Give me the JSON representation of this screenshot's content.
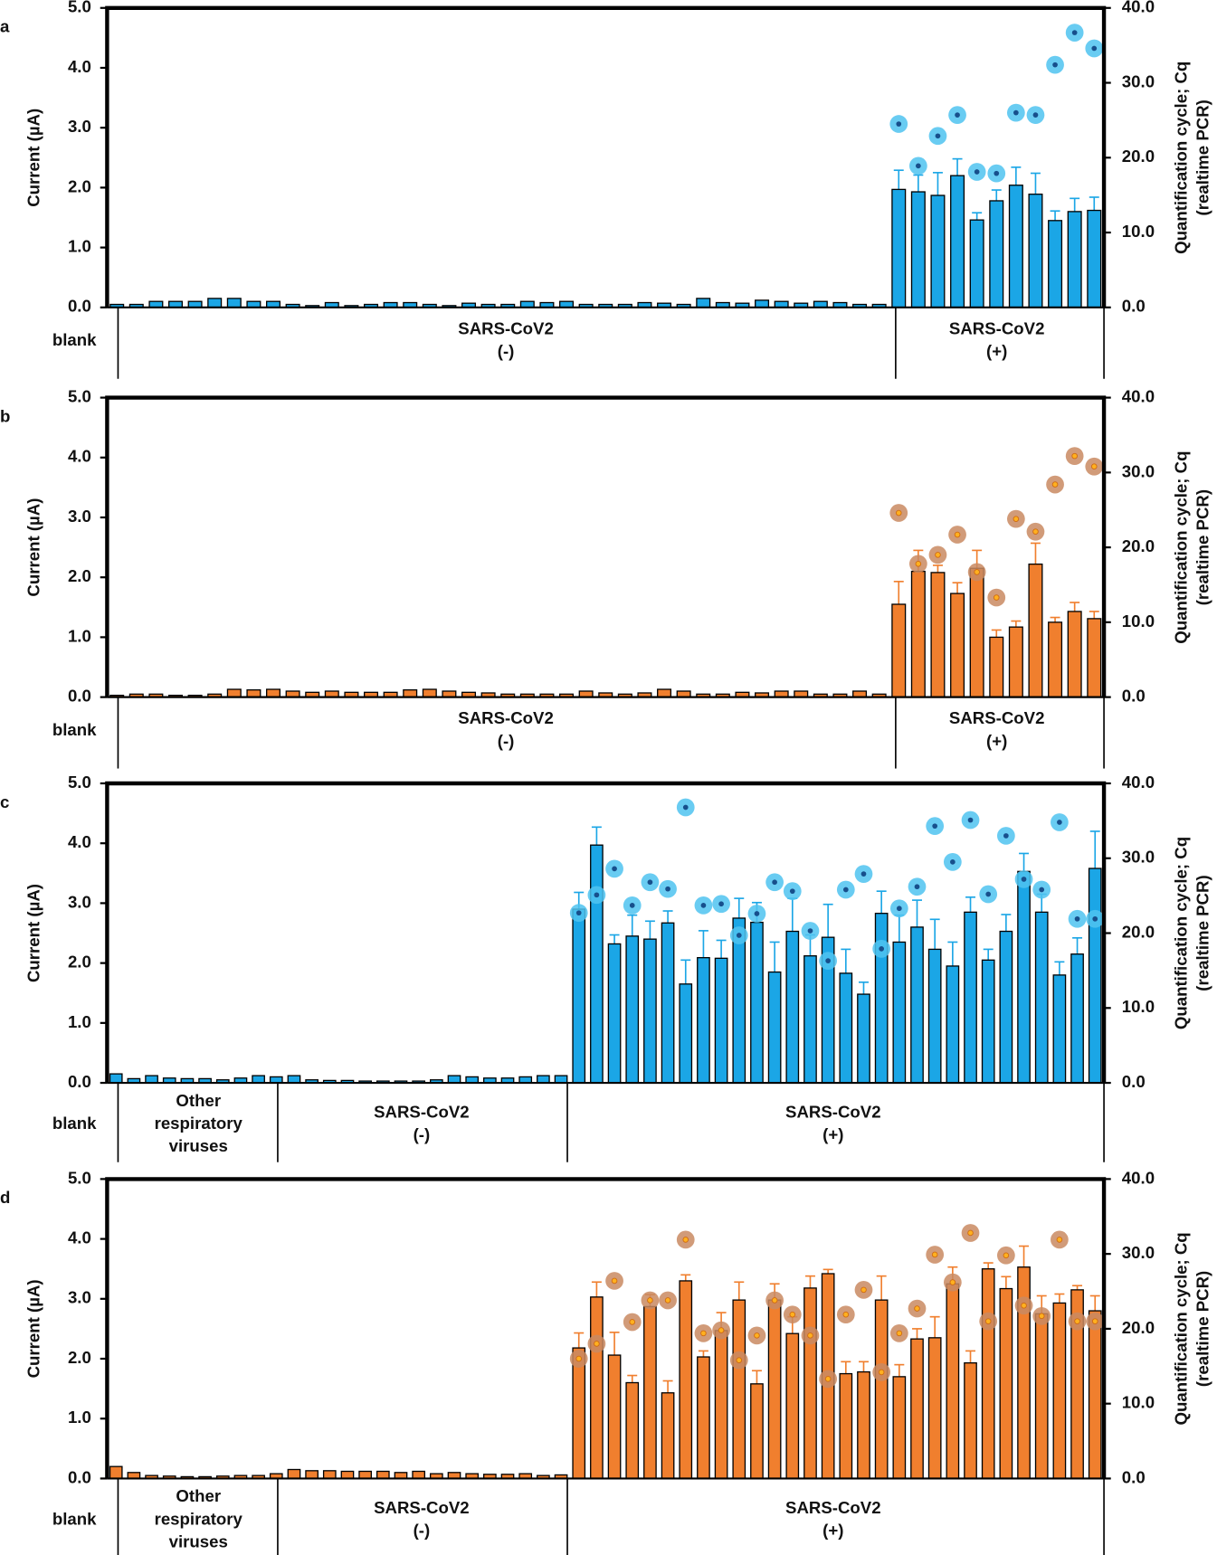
{
  "chart_data": [
    {
      "type": "bar",
      "panel_label": "a",
      "ylabel": "Current (µA)",
      "y2label": [
        "Quantification cycle; Cq",
        "(realtime PCR)"
      ],
      "ylim": [
        0,
        5
      ],
      "yticks": [
        {
          "value": 0,
          "label": "0.0"
        },
        {
          "value": 1,
          "label": "1.0"
        },
        {
          "value": 2,
          "label": "2.0"
        },
        {
          "value": 3,
          "label": "3.0"
        },
        {
          "value": 4,
          "label": "4.0"
        },
        {
          "value": 5,
          "label": "5.0"
        }
      ],
      "y2lim": [
        0,
        40
      ],
      "y2ticks": [
        {
          "value": 0,
          "label": "0.0"
        },
        {
          "value": 10,
          "label": "10.0"
        },
        {
          "value": 20,
          "label": "20.0"
        },
        {
          "value": 30,
          "label": "30.0"
        },
        {
          "value": 40,
          "label": "40.0"
        }
      ],
      "groups": [
        [
          "blank"
        ],
        [
          "SARS-CoV2",
          "(-)"
        ],
        [
          "SARS-CoV2",
          "(+)"
        ]
      ],
      "series": [
        {
          "color": "#1ba6e6",
          "values": [
            0.05,
            0.05,
            0.1,
            0.1,
            0.1,
            0.15,
            0.15,
            0.1,
            0.1,
            0.05,
            0.03,
            0.08,
            0.03,
            0.05,
            0.08,
            0.08,
            0.05,
            0.03,
            0.07,
            0.05,
            0.05,
            0.1,
            0.08,
            0.1,
            0.05,
            0.05,
            0.05,
            0.08,
            0.07,
            0.05,
            0.15,
            0.08,
            0.07,
            0.12,
            0.1,
            0.07,
            0.1,
            0.08,
            0.05,
            0.05,
            1.97,
            1.93,
            1.87,
            2.2,
            1.46,
            1.78,
            2.04,
            1.89,
            1.45,
            1.6,
            1.62
          ],
          "errors": [
            null,
            null,
            null,
            null,
            null,
            null,
            null,
            null,
            null,
            null,
            null,
            null,
            null,
            null,
            null,
            null,
            null,
            null,
            null,
            null,
            null,
            null,
            null,
            null,
            null,
            null,
            null,
            null,
            null,
            null,
            null,
            null,
            null,
            null,
            null,
            null,
            null,
            null,
            null,
            null,
            0.32,
            0.28,
            0.38,
            0.28,
            0.12,
            0.18,
            0.3,
            0.35,
            0.16,
            0.22,
            0.22
          ]
        },
        {
          "type": "scatter",
          "axis": "y2",
          "color": "#4fc3f0",
          "values": [
            null,
            null,
            null,
            null,
            null,
            null,
            null,
            null,
            null,
            null,
            null,
            null,
            null,
            null,
            null,
            null,
            null,
            null,
            null,
            null,
            null,
            null,
            null,
            null,
            null,
            null,
            null,
            null,
            null,
            null,
            null,
            null,
            null,
            null,
            null,
            null,
            null,
            null,
            null,
            null,
            24.5,
            18.9,
            22.9,
            25.7,
            18.1,
            17.9,
            26.0,
            25.7,
            32.4,
            36.7,
            34.6
          ]
        }
      ]
    },
    {
      "type": "bar",
      "panel_label": "b",
      "ylabel": "Current (µA)",
      "y2label": [
        "Quantification cycle; Cq",
        "(realtime PCR)"
      ],
      "ylim": [
        0,
        5
      ],
      "yticks": [
        {
          "value": 0,
          "label": "0.0"
        },
        {
          "value": 1,
          "label": "1.0"
        },
        {
          "value": 2,
          "label": "2.0"
        },
        {
          "value": 3,
          "label": "3.0"
        },
        {
          "value": 4,
          "label": "4.0"
        },
        {
          "value": 5,
          "label": "5.0"
        }
      ],
      "y2lim": [
        0,
        40
      ],
      "y2ticks": [
        {
          "value": 0,
          "label": "0.0"
        },
        {
          "value": 10,
          "label": "10.0"
        },
        {
          "value": 20,
          "label": "20.0"
        },
        {
          "value": 30,
          "label": "30.0"
        },
        {
          "value": 40,
          "label": "40.0"
        }
      ],
      "groups": [
        [
          "blank"
        ],
        [
          "SARS-CoV2",
          "(-)"
        ],
        [
          "SARS-CoV2",
          "(+)"
        ]
      ],
      "series": [
        {
          "color": "#f07f2e",
          "values": [
            0.03,
            0.05,
            0.05,
            0.03,
            0.03,
            0.05,
            0.13,
            0.12,
            0.13,
            0.1,
            0.08,
            0.1,
            0.08,
            0.08,
            0.08,
            0.12,
            0.13,
            0.1,
            0.08,
            0.07,
            0.05,
            0.05,
            0.05,
            0.05,
            0.1,
            0.07,
            0.05,
            0.07,
            0.13,
            0.1,
            0.05,
            0.05,
            0.08,
            0.07,
            0.1,
            0.1,
            0.05,
            0.05,
            0.1,
            0.05,
            1.55,
            2.1,
            2.08,
            1.73,
            2.15,
            1.0,
            1.17,
            2.22,
            1.25,
            1.43,
            1.31
          ],
          "errors": [
            null,
            null,
            null,
            null,
            null,
            null,
            null,
            null,
            null,
            null,
            null,
            null,
            null,
            null,
            null,
            null,
            null,
            null,
            null,
            null,
            null,
            null,
            null,
            null,
            null,
            null,
            null,
            null,
            null,
            null,
            null,
            null,
            null,
            null,
            null,
            null,
            null,
            null,
            null,
            null,
            0.38,
            0.35,
            0.12,
            0.18,
            0.3,
            0.12,
            0.1,
            0.35,
            0.08,
            0.15,
            0.12
          ]
        },
        {
          "type": "scatter",
          "axis": "y2",
          "color": "#c98a62",
          "values": [
            null,
            null,
            null,
            null,
            null,
            null,
            null,
            null,
            null,
            null,
            null,
            null,
            null,
            null,
            null,
            null,
            null,
            null,
            null,
            null,
            null,
            null,
            null,
            null,
            null,
            null,
            null,
            null,
            null,
            null,
            null,
            null,
            null,
            null,
            null,
            null,
            null,
            null,
            null,
            null,
            24.6,
            17.8,
            19.0,
            21.7,
            16.7,
            13.3,
            23.8,
            22.1,
            28.4,
            32.2,
            30.8
          ]
        }
      ]
    },
    {
      "type": "bar",
      "panel_label": "c",
      "ylabel": "Current (µA)",
      "y2label": [
        "Quantification cycle; Cq",
        "(realtime PCR)"
      ],
      "ylim": [
        0,
        5
      ],
      "yticks": [
        {
          "value": 0,
          "label": "0.0"
        },
        {
          "value": 1,
          "label": "1.0"
        },
        {
          "value": 2,
          "label": "2.0"
        },
        {
          "value": 3,
          "label": "3.0"
        },
        {
          "value": 4,
          "label": "4.0"
        },
        {
          "value": 5,
          "label": "5.0"
        }
      ],
      "y2lim": [
        0,
        40
      ],
      "y2ticks": [
        {
          "value": 0,
          "label": "0.0"
        },
        {
          "value": 10,
          "label": "10.0"
        },
        {
          "value": 20,
          "label": "20.0"
        },
        {
          "value": 30,
          "label": "30.0"
        },
        {
          "value": 40,
          "label": "40.0"
        }
      ],
      "groups": [
        [
          "blank"
        ],
        [
          "Other",
          "respiratory",
          "viruses"
        ],
        [
          "SARS-CoV2",
          "(-)"
        ],
        [
          "SARS-CoV2",
          "(+)"
        ]
      ],
      "series": [
        {
          "color": "#1ba6e6",
          "values": [
            0.15,
            0.07,
            0.12,
            0.08,
            0.07,
            0.07,
            0.05,
            0.08,
            0.12,
            0.1,
            0.12,
            0.05,
            0.04,
            0.04,
            0.03,
            0.03,
            0.03,
            0.03,
            0.05,
            0.12,
            0.1,
            0.08,
            0.08,
            0.1,
            0.12,
            0.12,
            2.9,
            3.97,
            2.32,
            2.45,
            2.4,
            2.67,
            1.65,
            2.09,
            2.08,
            2.75,
            2.68,
            1.85,
            2.53,
            2.12,
            2.43,
            1.83,
            1.48,
            2.83,
            2.35,
            2.6,
            2.23,
            1.95,
            2.85,
            2.05,
            2.53,
            3.53,
            2.85,
            1.8,
            2.15,
            3.58
          ],
          "errors": [
            null,
            null,
            null,
            null,
            null,
            null,
            null,
            null,
            null,
            null,
            null,
            null,
            null,
            null,
            null,
            null,
            null,
            null,
            null,
            null,
            null,
            null,
            null,
            null,
            null,
            null,
            0.28,
            0.3,
            0.15,
            0.35,
            0.3,
            0.2,
            0.4,
            0.45,
            0.3,
            0.33,
            0.33,
            0.5,
            0.55,
            0.35,
            0.55,
            0.4,
            0.2,
            0.37,
            0.45,
            0.45,
            0.5,
            0.4,
            0.25,
            0.18,
            0.28,
            0.3,
            0.3,
            0.22,
            0.27,
            0.62
          ]
        },
        {
          "type": "scatter",
          "axis": "y2",
          "color": "#4fc3f0",
          "values": [
            null,
            null,
            null,
            null,
            null,
            null,
            null,
            null,
            null,
            null,
            null,
            null,
            null,
            null,
            null,
            null,
            null,
            null,
            null,
            null,
            null,
            null,
            null,
            null,
            null,
            null,
            22.7,
            25.1,
            28.6,
            23.7,
            26.8,
            25.9,
            36.8,
            23.7,
            23.9,
            19.7,
            22.6,
            26.8,
            25.6,
            20.3,
            16.3,
            25.8,
            27.9,
            17.9,
            23.3,
            26.2,
            34.3,
            29.5,
            35.1,
            25.2,
            33.0,
            27.2,
            25.8,
            34.8,
            21.9,
            21.9
          ]
        }
      ]
    },
    {
      "type": "bar",
      "panel_label": "d",
      "ylabel": "Current (µA)",
      "y2label": [
        "Quantification cycle; Cq",
        "(realtime PCR)"
      ],
      "ylim": [
        0,
        5
      ],
      "yticks": [
        {
          "value": 0,
          "label": "0.0"
        },
        {
          "value": 1,
          "label": "1.0"
        },
        {
          "value": 2,
          "label": "2.0"
        },
        {
          "value": 3,
          "label": "3.0"
        },
        {
          "value": 4,
          "label": "4.0"
        },
        {
          "value": 5,
          "label": "5.0"
        }
      ],
      "y2lim": [
        0,
        40
      ],
      "y2ticks": [
        {
          "value": 0,
          "label": "0.0"
        },
        {
          "value": 10,
          "label": "10.0"
        },
        {
          "value": 20,
          "label": "20.0"
        },
        {
          "value": 30,
          "label": "30.0"
        },
        {
          "value": 40,
          "label": "40.0"
        }
      ],
      "groups": [
        [
          "blank"
        ],
        [
          "Other",
          "respiratory",
          "viruses"
        ],
        [
          "SARS-CoV2",
          "(-)"
        ],
        [
          "SARS-CoV2",
          "(+)"
        ]
      ],
      "series": [
        {
          "color": "#f07f2e",
          "values": [
            0.2,
            0.1,
            0.05,
            0.04,
            0.03,
            0.03,
            0.04,
            0.05,
            0.05,
            0.08,
            0.15,
            0.13,
            0.13,
            0.12,
            0.12,
            0.12,
            0.1,
            0.12,
            0.08,
            0.1,
            0.08,
            0.07,
            0.07,
            0.08,
            0.05,
            0.06,
            2.18,
            3.03,
            2.06,
            1.6,
            2.87,
            1.43,
            3.3,
            2.03,
            2.47,
            2.98,
            1.58,
            2.98,
            2.42,
            3.18,
            3.42,
            1.75,
            1.78,
            2.98,
            1.7,
            2.33,
            2.35,
            3.25,
            1.93,
            3.5,
            3.17,
            3.53,
            2.75,
            2.93,
            3.15,
            2.8
          ],
          "errors": [
            null,
            null,
            null,
            null,
            null,
            null,
            null,
            null,
            null,
            null,
            null,
            null,
            null,
            null,
            null,
            null,
            null,
            null,
            null,
            null,
            null,
            null,
            null,
            null,
            null,
            null,
            0.25,
            0.25,
            0.38,
            0.12,
            0.2,
            0.2,
            0.1,
            0.1,
            0.3,
            0.3,
            0.22,
            0.27,
            0.28,
            0.2,
            0.07,
            0.2,
            0.17,
            0.4,
            0.2,
            0.17,
            0.35,
            0.28,
            0.2,
            0.1,
            0.2,
            0.35,
            0.3,
            0.15,
            0.07,
            0.25
          ]
        },
        {
          "type": "scatter",
          "axis": "y2",
          "color": "#c98a62",
          "values": [
            null,
            null,
            null,
            null,
            null,
            null,
            null,
            null,
            null,
            null,
            null,
            null,
            null,
            null,
            null,
            null,
            null,
            null,
            null,
            null,
            null,
            null,
            null,
            null,
            null,
            null,
            16.0,
            18.0,
            26.4,
            20.9,
            23.8,
            23.8,
            31.9,
            19.4,
            19.8,
            15.8,
            19.1,
            23.8,
            21.9,
            19.1,
            13.3,
            21.9,
            25.2,
            14.2,
            19.4,
            22.7,
            29.9,
            26.2,
            32.8,
            21.0,
            29.8,
            23.1,
            21.7,
            31.9,
            21.0,
            21.0
          ]
        }
      ]
    }
  ]
}
